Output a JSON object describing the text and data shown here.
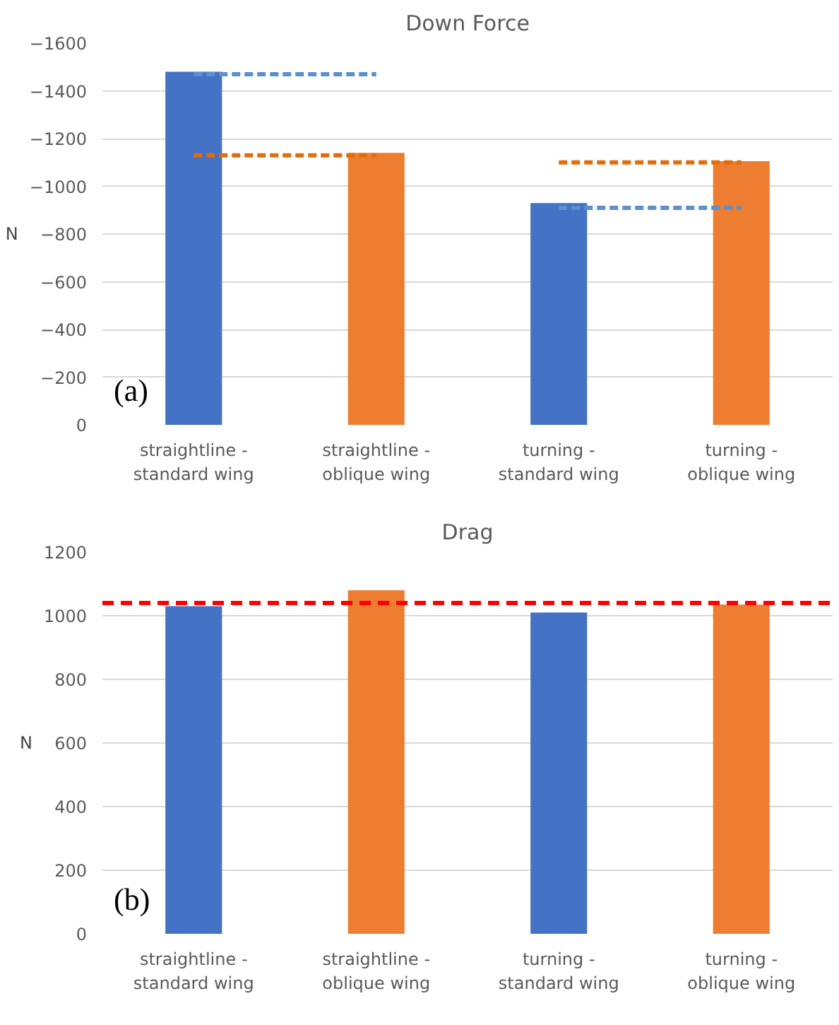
{
  "chart_data": [
    {
      "type": "bar",
      "title": "Down Force",
      "ylabel": "N",
      "categories": [
        "straightline -\nstandard wing",
        "straightline -\noblique wing",
        "turning -\nstandard wing",
        "turning -\noblique wing"
      ],
      "series": [
        {
          "type": "bar",
          "colors": [
            "#4472c4",
            "#ed7d31",
            "#4472c4",
            "#ed7d31"
          ],
          "values": [
            -1480,
            -1140,
            -930,
            -1105
          ]
        },
        {
          "type": "line",
          "color": "#5b8fd0",
          "line_style": "dashed",
          "values": [
            -1470,
            -1470,
            null,
            null
          ]
        },
        {
          "type": "line",
          "color": "#e36c0a",
          "line_style": "dashed",
          "values": [
            -1130,
            -1130,
            null,
            null
          ]
        },
        {
          "type": "line",
          "color": "#e36c0a",
          "line_style": "dashed",
          "values": [
            null,
            null,
            -1100,
            -1100
          ]
        },
        {
          "type": "line",
          "color": "#5b8fd0",
          "line_style": "dashed",
          "values": [
            null,
            null,
            -910,
            -910
          ]
        }
      ],
      "ylim": [
        0,
        -1600
      ],
      "yticks": [
        0,
        -200,
        -400,
        -600,
        -800,
        -1000,
        -1200,
        -1400,
        -1600
      ],
      "grid": "y",
      "annotations": [
        "(a)"
      ]
    },
    {
      "type": "bar",
      "title": "Drag",
      "ylabel": "N",
      "categories": [
        "straightline -\nstandard wing",
        "straightline -\noblique wing",
        "turning -\nstandard wing",
        "turning -\noblique wing"
      ],
      "values": [
        1030,
        1080,
        1010,
        1035
      ],
      "colors": [
        "#4472c4",
        "#ed7d31",
        "#4472c4",
        "#ed7d31"
      ],
      "ylim": [
        0,
        1200
      ],
      "yticks": [
        0,
        200,
        400,
        600,
        800,
        1000,
        1200
      ],
      "grid": "y",
      "ref_lines": [
        {
          "axis": "y",
          "value": 1040,
          "label": null,
          "color": "#ff0000",
          "line_style": "dashed"
        }
      ],
      "annotations": [
        "(b)"
      ]
    }
  ]
}
